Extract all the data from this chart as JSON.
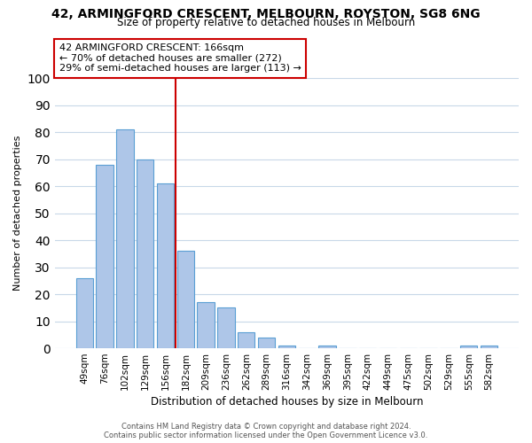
{
  "title": "42, ARMINGFORD CRESCENT, MELBOURN, ROYSTON, SG8 6NG",
  "subtitle": "Size of property relative to detached houses in Melbourn",
  "xlabel": "Distribution of detached houses by size in Melbourn",
  "ylabel": "Number of detached properties",
  "bar_labels": [
    "49sqm",
    "76sqm",
    "102sqm",
    "129sqm",
    "156sqm",
    "182sqm",
    "209sqm",
    "236sqm",
    "262sqm",
    "289sqm",
    "316sqm",
    "342sqm",
    "369sqm",
    "395sqm",
    "422sqm",
    "449sqm",
    "475sqm",
    "502sqm",
    "529sqm",
    "555sqm",
    "582sqm"
  ],
  "bar_values": [
    26,
    68,
    81,
    70,
    61,
    36,
    17,
    15,
    6,
    4,
    1,
    0,
    1,
    0,
    0,
    0,
    0,
    0,
    0,
    1,
    1
  ],
  "bar_color": "#aec6e8",
  "bar_edge_color": "#5a9fd4",
  "ylim": [
    0,
    100
  ],
  "yticks": [
    0,
    10,
    20,
    30,
    40,
    50,
    60,
    70,
    80,
    90,
    100
  ],
  "marker_line_color": "#cc0000",
  "annotation_text_line1": "42 ARMINGFORD CRESCENT: 166sqm",
  "annotation_text_line2": "← 70% of detached houses are smaller (272)",
  "annotation_text_line3": "29% of semi-detached houses are larger (113) →",
  "annotation_box_color": "#cc0000",
  "footer_line1": "Contains HM Land Registry data © Crown copyright and database right 2024.",
  "footer_line2": "Contains public sector information licensed under the Open Government Licence v3.0.",
  "background_color": "#ffffff",
  "grid_color": "#c8d8e8",
  "title_fontsize": 10,
  "subtitle_fontsize": 8.5,
  "ylabel_fontsize": 8,
  "xlabel_fontsize": 8.5,
  "tick_fontsize": 7.5,
  "ann_fontsize": 8.0,
  "footer_fontsize": 6.0
}
